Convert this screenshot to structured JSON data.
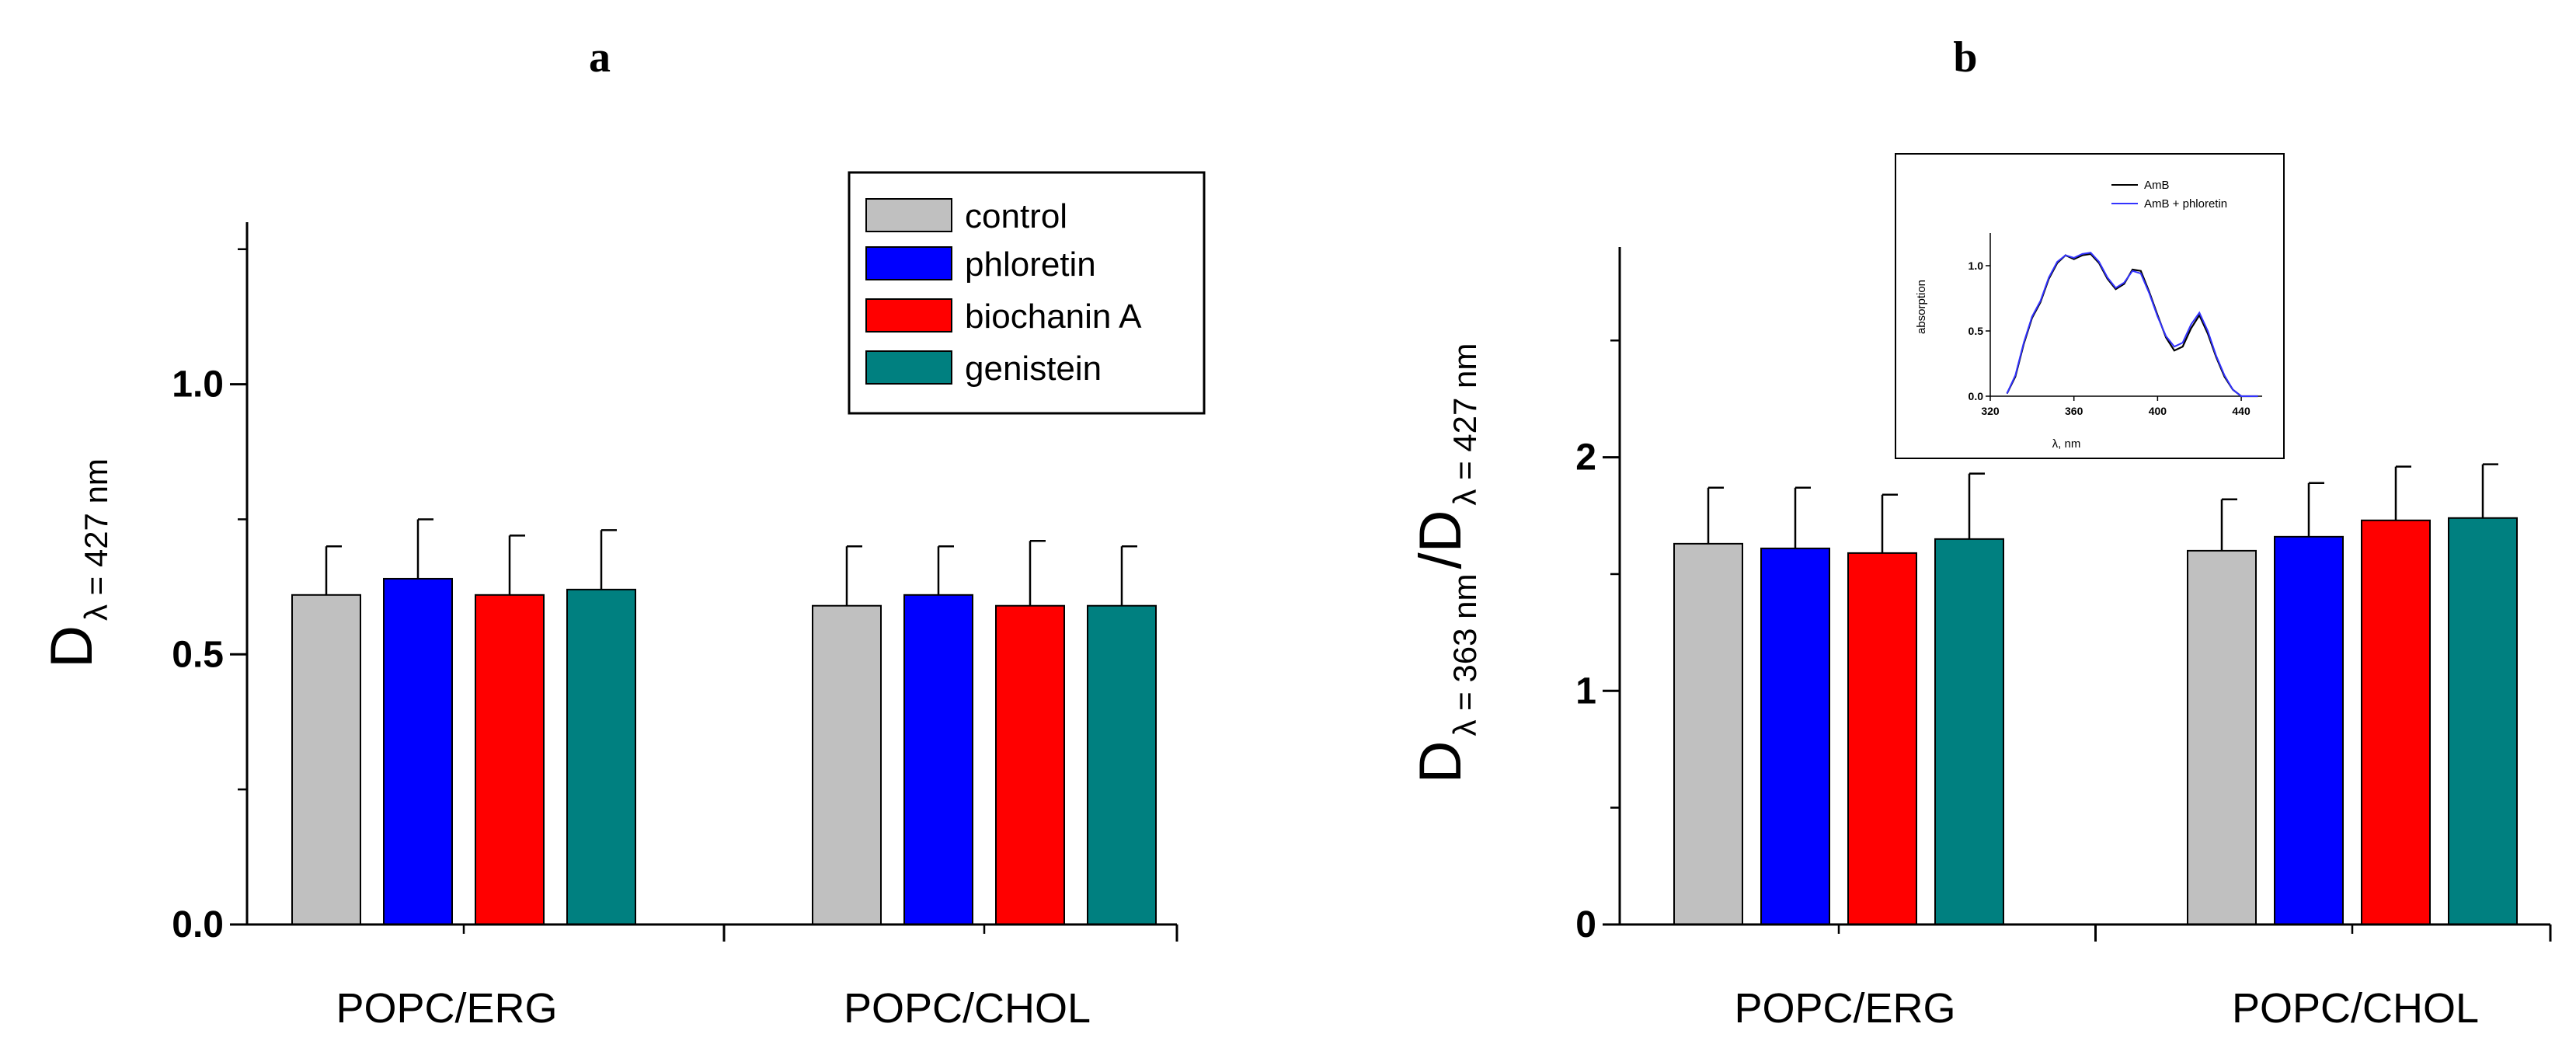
{
  "chart_data": [
    {
      "panel": "a",
      "type": "bar",
      "categories": [
        "POPC/ERG",
        "POPC/CHOL"
      ],
      "series": [
        {
          "name": "control",
          "color": "#c0c0c0",
          "values": [
            0.61,
            0.59
          ],
          "errors": [
            0.09,
            0.11
          ]
        },
        {
          "name": "phloretin",
          "color": "#0000ff",
          "values": [
            0.64,
            0.61
          ],
          "errors": [
            0.11,
            0.09
          ]
        },
        {
          "name": "biochanin A",
          "color": "#ff0000",
          "values": [
            0.61,
            0.59
          ],
          "errors": [
            0.11,
            0.12
          ]
        },
        {
          "name": "genistein",
          "color": "#008080",
          "values": [
            0.62,
            0.59
          ],
          "errors": [
            0.11,
            0.11
          ]
        }
      ],
      "ylim": [
        0,
        1.3
      ],
      "yticks": [
        0.0,
        0.5,
        1.0
      ],
      "ytick_labels": [
        "0.0",
        "0.5",
        "1.0"
      ],
      "ylabel": {
        "main": "D",
        "sub": "λ = 427 nm"
      },
      "legend": "top-right"
    },
    {
      "panel": "b",
      "type": "bar",
      "categories": [
        "POPC/ERG",
        "POPC/CHOL"
      ],
      "series": [
        {
          "name": "control",
          "color": "#c0c0c0",
          "values": [
            1.63,
            1.6
          ],
          "errors": [
            0.24,
            0.22
          ]
        },
        {
          "name": "phloretin",
          "color": "#0000ff",
          "values": [
            1.61,
            1.66
          ],
          "errors": [
            0.26,
            0.23
          ]
        },
        {
          "name": "biochanin A",
          "color": "#ff0000",
          "values": [
            1.59,
            1.73
          ],
          "errors": [
            0.25,
            0.23
          ]
        },
        {
          "name": "genistein",
          "color": "#008080",
          "values": [
            1.65,
            1.74
          ],
          "errors": [
            0.28,
            0.23
          ]
        }
      ],
      "ylim": [
        0,
        2.9
      ],
      "yticks": [
        0,
        1,
        2
      ],
      "ytick_labels": [
        "0",
        "1",
        "2"
      ],
      "ylabel": {
        "main1": "D",
        "sub1": "λ = 363 nm",
        "main2": "/D",
        "sub2": "λ = 427 nm"
      },
      "inset": {
        "type": "line",
        "xlabel": "λ, nm",
        "ylabel": "absorption",
        "xlim": [
          320,
          450
        ],
        "ylim": [
          0,
          1.25
        ],
        "xticks": [
          320,
          360,
          400,
          440
        ],
        "yticks": [
          0.0,
          0.5,
          1.0
        ],
        "ytick_labels": [
          "0.0",
          "0.5",
          "1.0"
        ],
        "series": [
          {
            "name": "AmB",
            "color": "#000000",
            "x": [
              328,
              332,
              336,
              340,
              344,
              348,
              352,
              356,
              360,
              364,
              368,
              372,
              376,
              380,
              384,
              388,
              392,
              396,
              400,
              404,
              408,
              412,
              416,
              420,
              424,
              428,
              432,
              436,
              440,
              444,
              448
            ],
            "y": [
              0.02,
              0.15,
              0.4,
              0.6,
              0.72,
              0.9,
              1.02,
              1.08,
              1.05,
              1.08,
              1.09,
              1.02,
              0.9,
              0.82,
              0.86,
              0.97,
              0.96,
              0.8,
              0.62,
              0.45,
              0.35,
              0.38,
              0.52,
              0.62,
              0.48,
              0.3,
              0.15,
              0.05,
              0.0,
              0.0,
              0.0
            ]
          },
          {
            "name": "AmB + phloretin",
            "color": "#3333ff",
            "x": [
              328,
              332,
              336,
              340,
              344,
              348,
              352,
              356,
              360,
              364,
              368,
              372,
              376,
              380,
              384,
              388,
              392,
              396,
              400,
              404,
              408,
              412,
              416,
              420,
              424,
              428,
              432,
              436,
              440,
              444,
              448
            ],
            "y": [
              0.02,
              0.16,
              0.41,
              0.61,
              0.73,
              0.91,
              1.03,
              1.08,
              1.06,
              1.09,
              1.1,
              1.03,
              0.91,
              0.83,
              0.87,
              0.96,
              0.94,
              0.79,
              0.61,
              0.46,
              0.38,
              0.41,
              0.55,
              0.64,
              0.5,
              0.31,
              0.16,
              0.05,
              0.0,
              0.0,
              0.0
            ]
          }
        ]
      }
    }
  ],
  "legend": {
    "items": [
      {
        "label": "control",
        "color": "#c0c0c0"
      },
      {
        "label": "phloretin",
        "color": "#0000ff"
      },
      {
        "label": "biochanin A",
        "color": "#ff0000"
      },
      {
        "label": "genistein",
        "color": "#008080"
      }
    ]
  },
  "panels": {
    "a_label": "a",
    "b_label": "b"
  }
}
